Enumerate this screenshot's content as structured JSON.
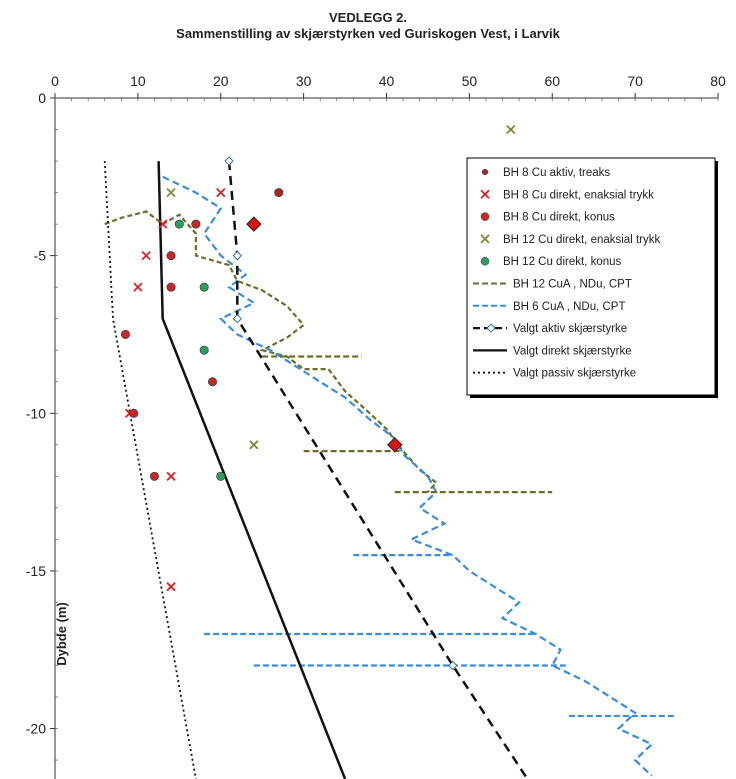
{
  "title_line1": "VEDLEGG 2.",
  "title_line2": "Sammenstilling av skjærstyrken ved Guriskogen Vest, i Larvik",
  "chart_data": {
    "type": "scatter",
    "xlabel": "",
    "ylabel": "Dybde (m)",
    "xlim": [
      0,
      80
    ],
    "ylim": [
      0,
      -21.6
    ],
    "x_ticks": [
      "0",
      "10",
      "20",
      "30",
      "40",
      "50",
      "60",
      "70",
      "80"
    ],
    "y_ticks": [
      "0",
      "-5",
      "-10",
      "-15",
      "-20"
    ],
    "grid": false,
    "legend_position": "top-right",
    "colors": {
      "bh8_aktiv": "#b22222",
      "bh8_direkt_x": "#e02020",
      "bh8_konus": "#c62828",
      "bh12_x": "#7a8a3a",
      "bh12_konus": "#2e9e5e",
      "bh12_cpt": "#6b6f2a",
      "bh6_cpt": "#3a8dde",
      "valgt_aktiv": "#111111"
    },
    "series": [
      {
        "key": "bh8_aktiv",
        "name": "BH 8 Cu aktiv, treaks",
        "marker": "dot",
        "points": [
          [
            27,
            -3
          ],
          [
            24,
            -4
          ],
          [
            41,
            -11
          ]
        ],
        "big_diamonds": [
          [
            24,
            -4
          ],
          [
            41,
            -11
          ]
        ]
      },
      {
        "key": "bh8_direkt_x",
        "name": "BH 8 Cu direkt, enaksial trykk",
        "marker": "x",
        "points": [
          [
            20,
            -3
          ],
          [
            13,
            -4
          ],
          [
            11,
            -5
          ],
          [
            10,
            -6
          ],
          [
            9,
            -10
          ],
          [
            14,
            -12
          ],
          [
            14,
            -15.5
          ]
        ]
      },
      {
        "key": "bh8_konus",
        "name": "BH 8 Cu direkt, konus",
        "marker": "circle",
        "points": [
          [
            17,
            -4
          ],
          [
            14,
            -5
          ],
          [
            14,
            -6
          ],
          [
            8.5,
            -7.5
          ],
          [
            19,
            -9
          ],
          [
            9.5,
            -10
          ],
          [
            12,
            -12
          ]
        ]
      },
      {
        "key": "bh12_x",
        "name": "BH 12 Cu direkt, enaksial trykk",
        "marker": "x",
        "points": [
          [
            55,
            -1
          ],
          [
            14,
            -3
          ],
          [
            24,
            -11
          ]
        ]
      },
      {
        "key": "bh12_konus",
        "name": "BH 12 Cu direkt, konus",
        "marker": "circle",
        "points": [
          [
            15,
            -4
          ],
          [
            18,
            -6
          ],
          [
            18,
            -8
          ],
          [
            20,
            -12
          ]
        ]
      },
      {
        "key": "bh12_cpt",
        "name": "BH 12 CuA , NDu, CPT",
        "marker": "dash",
        "points": [
          [
            6,
            -4
          ],
          [
            8,
            -3.8
          ],
          [
            11,
            -3.6
          ],
          [
            13,
            -4
          ],
          [
            15,
            -3.7
          ],
          [
            17,
            -4.3
          ],
          [
            17,
            -5.0
          ],
          [
            21,
            -5.3
          ],
          [
            22,
            -5.8
          ],
          [
            25,
            -6.1
          ],
          [
            28,
            -6.6
          ],
          [
            30,
            -7.2
          ],
          [
            28,
            -7.6
          ],
          [
            25,
            -8.0
          ],
          [
            28,
            -8.2
          ],
          [
            30,
            -8.6
          ],
          [
            33,
            -8.6
          ],
          [
            35,
            -9.3
          ],
          [
            38,
            -10.0
          ],
          [
            40,
            -10.5
          ],
          [
            42,
            -11.2
          ],
          [
            44,
            -11.8
          ],
          [
            46,
            -12.2
          ],
          [
            45,
            -12.5
          ]
        ]
      },
      {
        "key": "bh6_cpt",
        "name": "BH 6 CuA , NDu, CPT",
        "marker": "dash",
        "points": [
          [
            13,
            -2.5
          ],
          [
            17,
            -3.0
          ],
          [
            20,
            -3.5
          ],
          [
            18,
            -4.3
          ],
          [
            20,
            -5.0
          ],
          [
            23,
            -5.6
          ],
          [
            21,
            -6.0
          ],
          [
            24,
            -6.5
          ],
          [
            20,
            -7.0
          ],
          [
            22,
            -7.5
          ],
          [
            26,
            -8.0
          ],
          [
            29,
            -8.5
          ],
          [
            32,
            -9.0
          ],
          [
            35,
            -9.5
          ],
          [
            38,
            -10.2
          ],
          [
            41,
            -10.8
          ],
          [
            42,
            -11.3
          ],
          [
            45,
            -12.0
          ],
          [
            46,
            -12.5
          ],
          [
            44,
            -13.0
          ],
          [
            47,
            -13.5
          ],
          [
            43,
            -14.0
          ],
          [
            48,
            -14.5
          ],
          [
            50,
            -15.0
          ],
          [
            53,
            -15.5
          ],
          [
            56,
            -16.0
          ],
          [
            54,
            -16.5
          ],
          [
            58,
            -17.0
          ],
          [
            61,
            -17.5
          ],
          [
            60,
            -18.0
          ],
          [
            64,
            -18.5
          ],
          [
            67,
            -19.0
          ],
          [
            70,
            -19.5
          ],
          [
            68,
            -20.0
          ],
          [
            72,
            -20.5
          ],
          [
            70,
            -21.0
          ],
          [
            72,
            -21.5
          ]
        ]
      },
      {
        "key": "valgt_aktiv",
        "name": "Valgt aktiv skjærstyrke",
        "marker": "dashed_line",
        "points": [
          [
            21,
            -2
          ],
          [
            22,
            -5
          ],
          [
            22,
            -7
          ],
          [
            48,
            -18
          ],
          [
            57,
            -21.6
          ]
        ]
      },
      {
        "key": "valgt_direkt",
        "name": "Valgt direkt skjærstyrke",
        "marker": "solid_line",
        "points": [
          [
            12.5,
            -2
          ],
          [
            13,
            -7
          ],
          [
            35,
            -21.6
          ]
        ]
      },
      {
        "key": "valgt_passiv",
        "name": "Valgt passiv skjærstyrke",
        "marker": "dotted_line",
        "points": [
          [
            6,
            -2
          ],
          [
            7,
            -7
          ],
          [
            17,
            -21.6
          ]
        ]
      }
    ],
    "cpt_spikes": [
      {
        "series": "bh12_cpt",
        "depth": -8.2,
        "from": 25,
        "to": 37
      },
      {
        "series": "bh12_cpt",
        "depth": -11.2,
        "from": 30,
        "to": 42
      },
      {
        "series": "bh12_cpt",
        "depth": -12.5,
        "from": 41,
        "to": 60
      },
      {
        "series": "bh6_cpt",
        "depth": -14.5,
        "from": 36,
        "to": 48
      },
      {
        "series": "bh6_cpt",
        "depth": -17.0,
        "from": 18,
        "to": 58
      },
      {
        "series": "bh6_cpt",
        "depth": -18.0,
        "from": 24,
        "to": 62
      },
      {
        "series": "bh6_cpt",
        "depth": -19.6,
        "from": 62,
        "to": 75
      }
    ]
  }
}
